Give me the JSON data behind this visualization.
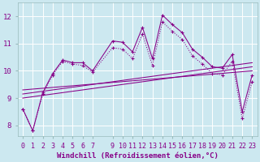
{
  "xlabel": "Windchill (Refroidissement éolien,°C)",
  "bg_color": "#cce8f0",
  "line_color": "#880088",
  "grid_color": "#aadddd",
  "xlim": [
    -0.5,
    23.5
  ],
  "ylim": [
    7.6,
    12.5
  ],
  "xticks": [
    0,
    1,
    2,
    3,
    4,
    5,
    6,
    7,
    9,
    10,
    11,
    12,
    13,
    14,
    15,
    16,
    17,
    18,
    19,
    20,
    21,
    22,
    23
  ],
  "yticks": [
    8,
    9,
    10,
    11,
    12
  ],
  "series_main": {
    "x": [
      0,
      1,
      2,
      3,
      4,
      5,
      6,
      7,
      9,
      10,
      11,
      12,
      13,
      14,
      15,
      16,
      17,
      18,
      19,
      20,
      21,
      22,
      23
    ],
    "y": [
      8.6,
      7.8,
      9.2,
      9.9,
      10.4,
      10.3,
      10.3,
      10.0,
      11.1,
      11.05,
      10.7,
      11.6,
      10.45,
      12.05,
      11.7,
      11.4,
      10.8,
      10.5,
      10.15,
      10.1,
      10.6,
      8.5,
      9.85
    ]
  },
  "series_dotted": {
    "x": [
      0,
      1,
      2,
      3,
      4,
      5,
      6,
      7,
      9,
      10,
      11,
      12,
      13,
      14,
      15,
      16,
      17,
      18,
      19,
      20,
      21,
      22,
      23
    ],
    "y": [
      8.6,
      7.8,
      9.15,
      9.85,
      10.35,
      10.25,
      10.2,
      9.95,
      10.85,
      10.8,
      10.45,
      11.35,
      10.2,
      11.8,
      11.45,
      11.15,
      10.55,
      10.25,
      9.9,
      9.85,
      10.35,
      8.25,
      9.6
    ]
  },
  "trend_lines": [
    {
      "x": [
        0,
        23
      ],
      "y": [
        9.0,
        10.15
      ]
    },
    {
      "x": [
        0,
        23
      ],
      "y": [
        9.15,
        10.3
      ]
    },
    {
      "x": [
        0,
        23
      ],
      "y": [
        9.3,
        10.0
      ]
    }
  ],
  "font_size": 6.5
}
